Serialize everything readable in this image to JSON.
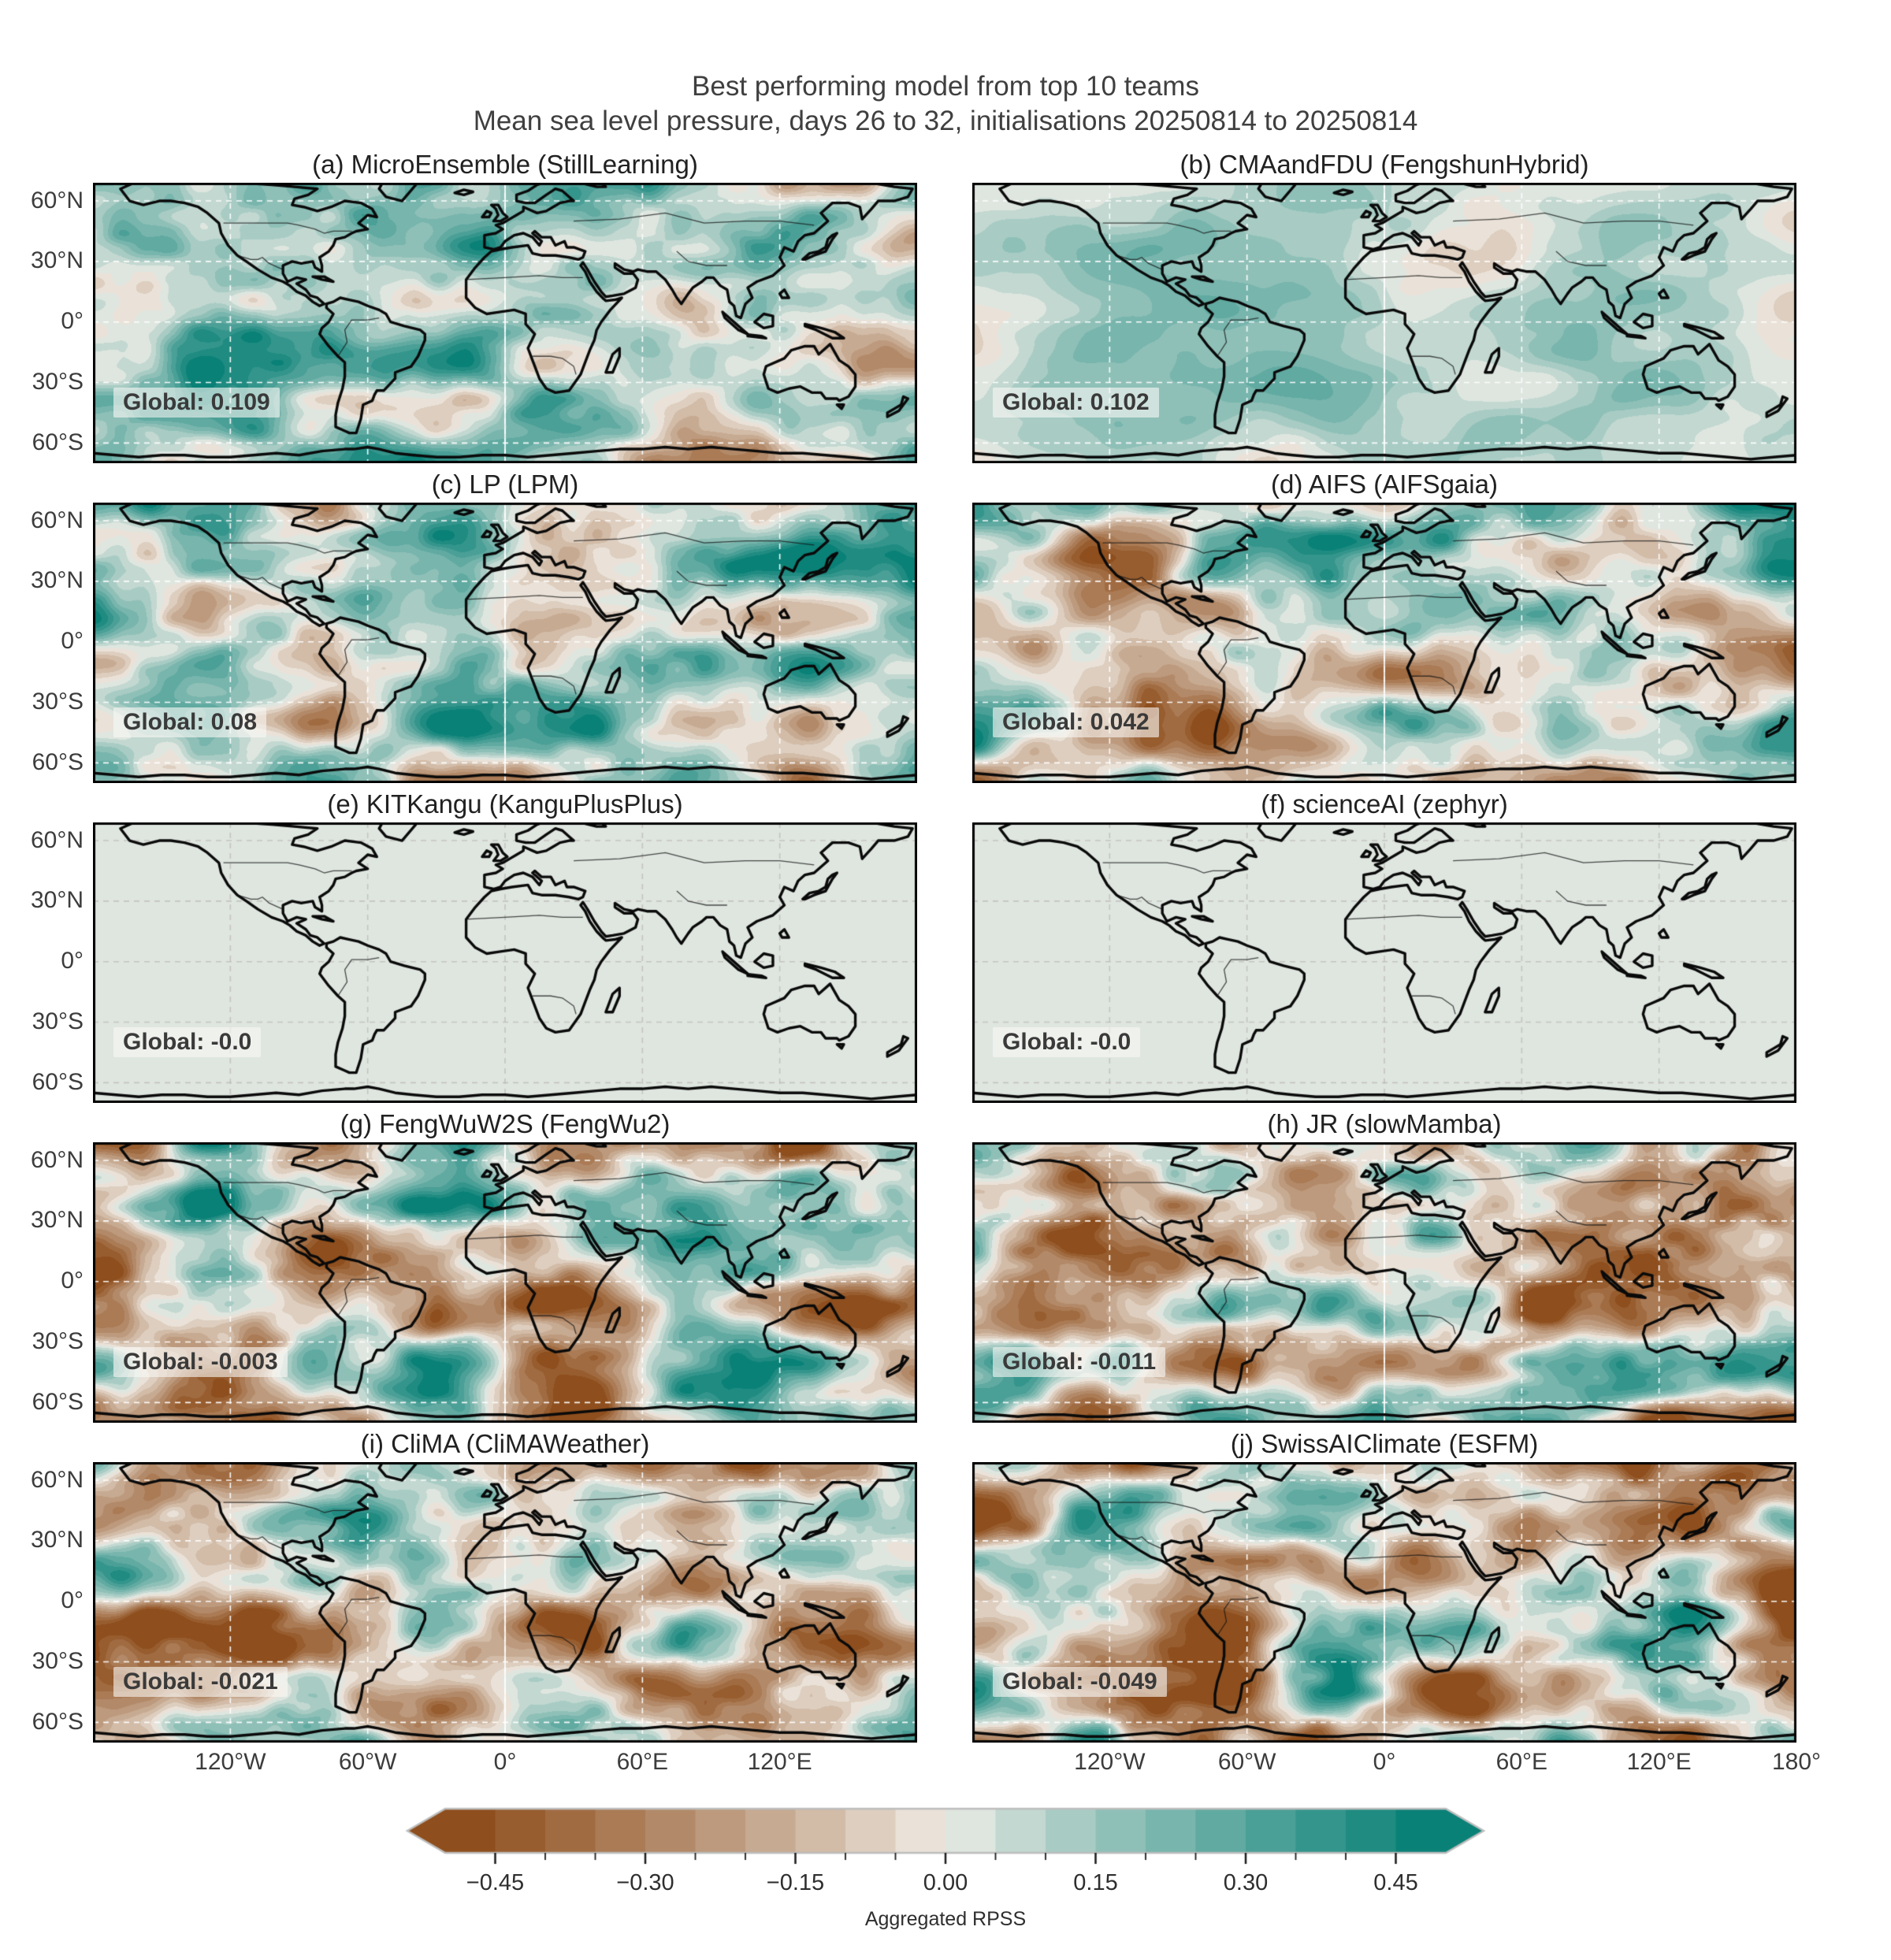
{
  "figure": {
    "title": "Best performing model from top 10 teams",
    "subtitle": "Mean sea level pressure, days 26 to 32, initialisations 20250814 to 20250814"
  },
  "chart_data": {
    "type": "heatmap",
    "layout": "5x2 grid of global equirectangular maps, shared colorbar at bottom, latitude labels on left column only, longitude labels under bottom row",
    "title": "Best performing model from top 10 teams",
    "subtitle": "Mean sea level pressure, days 26 to 32, initialisations 20250814 to 20250814",
    "panels": [
      {
        "id": "a",
        "title": "(a) MicroEnsemble (StillLearning)",
        "team": "MicroEnsemble",
        "model": "StillLearning",
        "global_label": "Global: 0.109",
        "global_rpss": 0.109
      },
      {
        "id": "b",
        "title": "(b) CMAandFDU (FengshunHybrid)",
        "team": "CMAandFDU",
        "model": "FengshunHybrid",
        "global_label": "Global: 0.102",
        "global_rpss": 0.102
      },
      {
        "id": "c",
        "title": "(c) LP (LPM)",
        "team": "LP",
        "model": "LPM",
        "global_label": "Global: 0.08",
        "global_rpss": 0.08
      },
      {
        "id": "d",
        "title": "(d) AIFS (AIFSgaia)",
        "team": "AIFS",
        "model": "AIFSgaia",
        "global_label": "Global: 0.042",
        "global_rpss": 0.042
      },
      {
        "id": "e",
        "title": "(e) KITKangu (KanguPlusPlus)",
        "team": "KITKangu",
        "model": "KanguPlusPlus",
        "global_label": "Global: -0.0",
        "global_rpss": -0.0
      },
      {
        "id": "f",
        "title": "(f) scienceAI (zephyr)",
        "team": "scienceAI",
        "model": "zephyr",
        "global_label": "Global: -0.0",
        "global_rpss": -0.0
      },
      {
        "id": "g",
        "title": "(g) FengWuW2S (FengWu2)",
        "team": "FengWuW2S",
        "model": "FengWu2",
        "global_label": "Global: -0.003",
        "global_rpss": -0.003
      },
      {
        "id": "h",
        "title": "(h) JR (slowMamba)",
        "team": "JR",
        "model": "slowMamba",
        "global_label": "Global: -0.011",
        "global_rpss": -0.011
      },
      {
        "id": "i",
        "title": "(i) CliMA (CliMAWeather)",
        "team": "CliMA",
        "model": "CliMAWeather",
        "global_label": "Global: -0.021",
        "global_rpss": -0.021
      },
      {
        "id": "j",
        "title": "(j) SwissAIClimate (ESFM)",
        "team": "SwissAIClimate",
        "model": "ESFM",
        "global_label": "Global: -0.049",
        "global_rpss": -0.049
      }
    ],
    "axes": {
      "lat_tick_labels": [
        "60°N",
        "30°N",
        "0°",
        "30°S",
        "60°S"
      ],
      "lat_tick_values": [
        60,
        30,
        0,
        -30,
        -60
      ],
      "lon_tick_labels": [
        "120°W",
        "60°W",
        "0°",
        "60°E",
        "120°E"
      ],
      "lon_tick_values": [
        -120,
        -60,
        0,
        60,
        120
      ],
      "lon_extra_right_label": "180°",
      "lon_extra_right_value": 180
    },
    "colorbar": {
      "label": "Aggregated RPSS",
      "tick_labels": [
        "−0.45",
        "−0.30",
        "−0.15",
        "0.00",
        "0.15",
        "0.30",
        "0.45"
      ],
      "tick_values": [
        -0.45,
        -0.3,
        -0.15,
        0.0,
        0.15,
        0.3,
        0.45
      ],
      "vmin": -0.5,
      "vmax": 0.5,
      "step": 0.05,
      "color_negative_end": "#8a4714",
      "color_zero": "#f2efe9",
      "color_positive_end": "#007c72",
      "grid_dashed_white": true,
      "legend_position": "bottom-center"
    },
    "pattern_hints": {
      "a": {
        "seed": 11,
        "amp": 0.95,
        "bias": 0.13,
        "scale": 1.0
      },
      "b": {
        "seed": 23,
        "amp": 0.4,
        "bias": 0.1,
        "scale": 0.72
      },
      "c": {
        "seed": 37,
        "amp": 1.05,
        "bias": 0.09,
        "scale": 1.0
      },
      "d": {
        "seed": 41,
        "amp": 1.2,
        "bias": 0.05,
        "scale": 0.9
      },
      "e": {
        "seed": 5,
        "amp": 0.0,
        "bias": 0.0,
        "scale": 1.0
      },
      "f": {
        "seed": 7,
        "amp": 0.0,
        "bias": 0.0,
        "scale": 1.0
      },
      "g": {
        "seed": 53,
        "amp": 1.25,
        "bias": -0.05,
        "scale": 1.0
      },
      "h": {
        "seed": 67,
        "amp": 1.25,
        "bias": -0.06,
        "scale": 1.05
      },
      "i": {
        "seed": 71,
        "amp": 1.25,
        "bias": -0.07,
        "scale": 1.0
      },
      "j": {
        "seed": 83,
        "amp": 1.3,
        "bias": -0.1,
        "scale": 1.0
      }
    }
  }
}
